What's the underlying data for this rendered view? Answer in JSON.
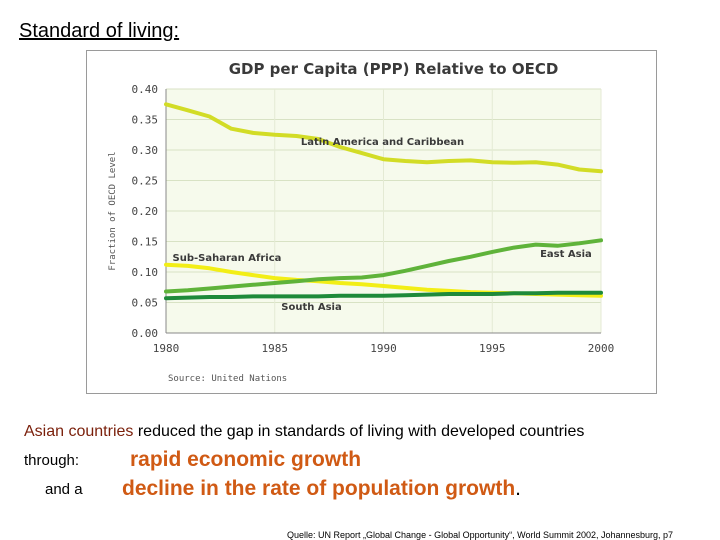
{
  "slide_title": "Standard of living:",
  "body": {
    "highlight": "Asian countries",
    "rest": " reduced the gap in standards of living with developed countries",
    "through_label": "through:",
    "and_label": "and a",
    "point1": "rapid economic growth",
    "point2": "decline in the rate of population growth",
    "point2_end": "."
  },
  "quelle": "Quelle: UN Report „Global Change - Global Opportunity“, World Summit 2002, Johannesburg, p7",
  "chart_data": {
    "type": "line",
    "title": "GDP per Capita (PPP) Relative to OECD",
    "xlabel": "",
    "ylabel": "Fraction of OECD Level",
    "source": "Source: United Nations",
    "xlim": [
      1980,
      2000
    ],
    "ylim": [
      0,
      0.4
    ],
    "xticks": [
      1980,
      1985,
      1990,
      1995,
      2000
    ],
    "yticks": [
      0.0,
      0.05,
      0.1,
      0.15,
      0.2,
      0.25,
      0.3,
      0.35,
      0.4
    ],
    "ytick_labels": [
      "0.00",
      "0.05",
      "0.10",
      "0.15",
      "0.20",
      "0.25",
      "0.30",
      "0.35",
      "0.40"
    ],
    "grid": true,
    "series": [
      {
        "name": "Latin America and Caribbean",
        "color": "#d2dc26",
        "x": [
          1980,
          1981,
          1982,
          1983,
          1984,
          1985,
          1986,
          1987,
          1988,
          1989,
          1990,
          1991,
          1992,
          1993,
          1994,
          1995,
          1996,
          1997,
          1998,
          1999,
          2000
        ],
        "values": [
          0.375,
          0.365,
          0.355,
          0.335,
          0.328,
          0.325,
          0.323,
          0.318,
          0.305,
          0.295,
          0.285,
          0.282,
          0.28,
          0.282,
          0.283,
          0.28,
          0.279,
          0.28,
          0.276,
          0.268,
          0.265
        ]
      },
      {
        "name": "East Asia",
        "color": "#5fb33a",
        "x": [
          1980,
          1981,
          1982,
          1983,
          1984,
          1985,
          1986,
          1987,
          1988,
          1989,
          1990,
          1991,
          1992,
          1993,
          1994,
          1995,
          1996,
          1997,
          1998,
          1999,
          2000
        ],
        "values": [
          0.068,
          0.07,
          0.073,
          0.076,
          0.079,
          0.082,
          0.085,
          0.088,
          0.09,
          0.091,
          0.095,
          0.102,
          0.11,
          0.118,
          0.125,
          0.133,
          0.14,
          0.145,
          0.143,
          0.147,
          0.152
        ]
      },
      {
        "name": "Sub-Saharan Africa",
        "color": "#f2ee16",
        "x": [
          1980,
          1981,
          1982,
          1983,
          1984,
          1985,
          1986,
          1987,
          1988,
          1989,
          1990,
          1991,
          1992,
          1993,
          1994,
          1995,
          1996,
          1997,
          1998,
          1999,
          2000
        ],
        "values": [
          0.112,
          0.11,
          0.106,
          0.1,
          0.095,
          0.09,
          0.087,
          0.085,
          0.082,
          0.08,
          0.077,
          0.074,
          0.071,
          0.069,
          0.067,
          0.066,
          0.065,
          0.064,
          0.063,
          0.062,
          0.061
        ]
      },
      {
        "name": "South Asia",
        "color": "#1e8a3a",
        "x": [
          1980,
          1981,
          1982,
          1983,
          1984,
          1985,
          1986,
          1987,
          1988,
          1989,
          1990,
          1991,
          1992,
          1993,
          1994,
          1995,
          1996,
          1997,
          1998,
          1999,
          2000
        ],
        "values": [
          0.057,
          0.058,
          0.059,
          0.059,
          0.06,
          0.06,
          0.06,
          0.06,
          0.061,
          0.061,
          0.061,
          0.062,
          0.063,
          0.064,
          0.064,
          0.064,
          0.065,
          0.065,
          0.066,
          0.066,
          0.066
        ]
      }
    ]
  }
}
